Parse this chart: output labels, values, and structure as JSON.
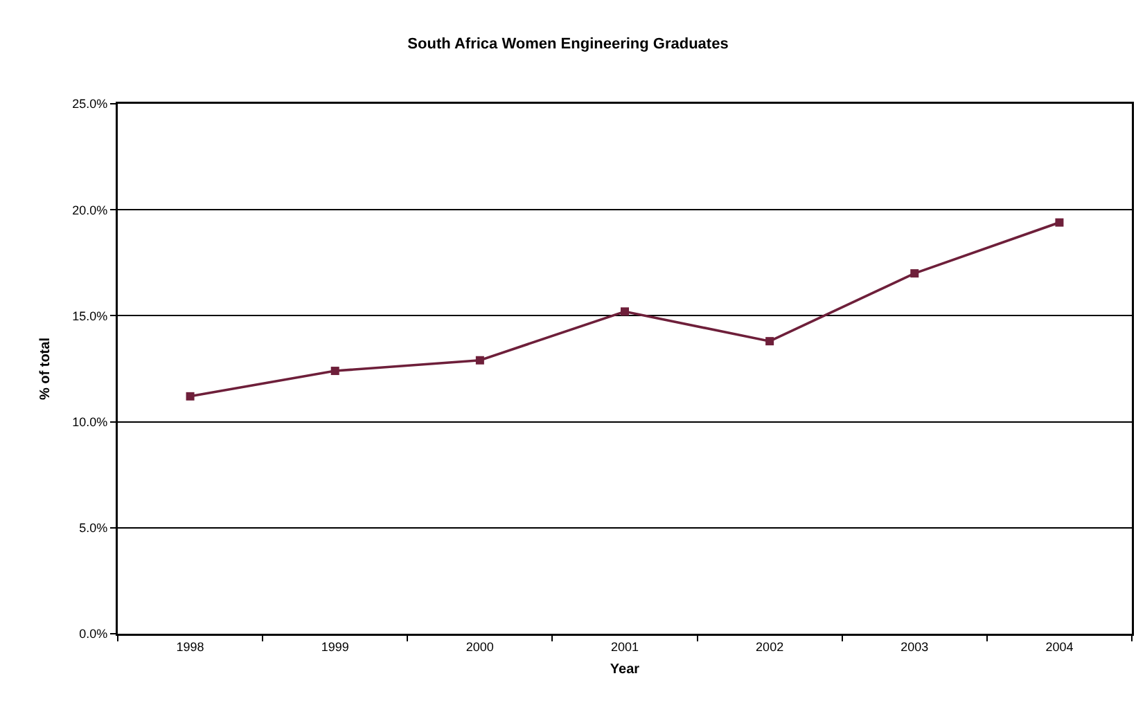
{
  "chart_data": {
    "type": "line",
    "title": "South Africa Women Engineering Graduates",
    "xlabel": "Year",
    "ylabel": "% of total",
    "categories": [
      "1998",
      "1999",
      "2000",
      "2001",
      "2002",
      "2003",
      "2004"
    ],
    "series": [
      {
        "color": "#6e1f3a",
        "values": [
          11.2,
          12.4,
          12.9,
          15.2,
          13.8,
          17.0,
          19.4
        ]
      }
    ],
    "ylim": [
      0,
      25
    ],
    "yticks": [
      {
        "value": 0,
        "label": "0.0%"
      },
      {
        "value": 5,
        "label": "5.0%"
      },
      {
        "value": 10,
        "label": "10.0%"
      },
      {
        "value": 15,
        "label": "15.0%"
      },
      {
        "value": 20,
        "label": "20.0%"
      },
      {
        "value": 25,
        "label": "25.0%"
      }
    ],
    "grid": "y",
    "marker": "square",
    "line_style": "solid"
  }
}
